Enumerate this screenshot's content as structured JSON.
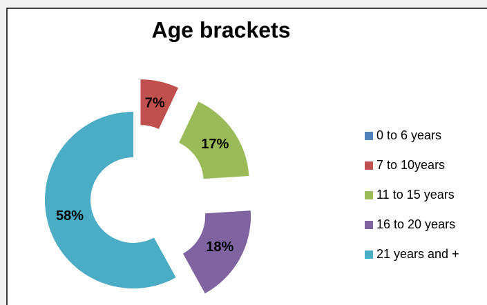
{
  "chart_data": {
    "type": "donut",
    "title": "Age brackets",
    "categories": [
      "0 to 6 years",
      "7 to 10years",
      "11 to 15 years",
      "16 to 20 years",
      "21 years and +"
    ],
    "values": [
      0,
      7,
      17,
      18,
      58
    ],
    "value_labels": [
      null,
      "7%",
      "17%",
      "18%",
      "58%"
    ],
    "colors": [
      "#4f81bd",
      "#c0504d",
      "#9bbb59",
      "#8064a2",
      "#4bacc6"
    ],
    "exploded": [
      true,
      true,
      true,
      true,
      false
    ],
    "legend": "right"
  }
}
